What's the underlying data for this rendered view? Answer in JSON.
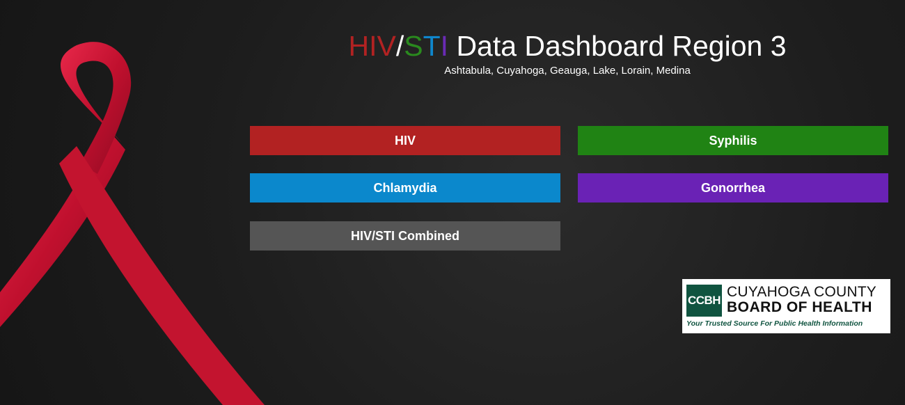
{
  "header": {
    "title_hiv": "HIV",
    "title_slash": "/",
    "title_s": "S",
    "title_t": "T",
    "title_i": "I",
    "title_rest": " Data Dashboard Region 3",
    "subtitle": "Ashtabula, Cuyahoga, Geauga, Lake, Lorain, Medina"
  },
  "buttons": {
    "hiv": "HIV",
    "syphilis": "Syphilis",
    "chlamydia": "Chlamydia",
    "gonorrhea": "Gonorrhea",
    "combined": "HIV/STI Combined"
  },
  "logo": {
    "abbr": "CCBH",
    "line1": "CUYAHOGA COUNTY",
    "line2": "BOARD OF HEALTH",
    "tagline": "Your Trusted Source For Public Health Information"
  },
  "colors": {
    "hiv": "#b22222",
    "syphilis": "#208314",
    "chlamydia": "#0b88cc",
    "gonorrhea": "#6a22b5",
    "combined": "#555555",
    "logo_green": "#105440"
  },
  "decor": {
    "image": "red-awareness-ribbon"
  }
}
